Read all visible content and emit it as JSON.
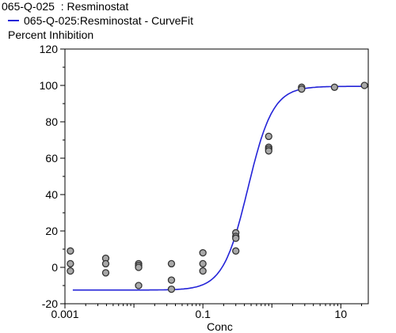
{
  "chart_data": {
    "type": "scatter",
    "title": "065-Q-025  : Resminostat",
    "legend": [
      {
        "label": "065-Q-025:Resminostat - CurveFit",
        "color": "#2323d8"
      }
    ],
    "xlabel": "Conc",
    "ylabel": "Percent Inhibition",
    "xscale": "log",
    "xlim": [
      0.001,
      25
    ],
    "ylim": [
      -20,
      120
    ],
    "xticks": [
      0.001,
      0.1,
      10
    ],
    "xtick_labels": [
      "0.001",
      "0.1",
      "10"
    ],
    "yticks": [
      -20,
      0,
      20,
      40,
      60,
      80,
      100,
      120
    ],
    "grid": false,
    "legend_position": "top-left",
    "series": [
      {
        "kind": "points",
        "x": [
          0.0012,
          0.0012,
          0.0012,
          0.0039,
          0.0039,
          0.0039,
          0.0117,
          0.0117,
          0.0117,
          0.0117,
          0.035,
          0.035,
          0.035,
          0.1,
          0.1,
          0.1,
          0.3,
          0.3,
          0.3,
          0.3,
          0.9,
          0.9,
          0.9,
          0.9,
          2.7,
          2.7,
          8.1,
          22
        ],
        "y": [
          9,
          2,
          -2,
          5,
          2,
          -3,
          2,
          1,
          0,
          -10,
          2,
          -7,
          -12,
          8,
          2,
          -2,
          19,
          17,
          16,
          9,
          72,
          66,
          65,
          64,
          99,
          98,
          99,
          100
        ]
      },
      {
        "kind": "curve",
        "name": "065-Q-025:Resminostat - CurveFit",
        "bottom": -12.5,
        "top": 99.5,
        "ec50": 0.45,
        "hill": 2.4,
        "x_range": [
          0.0013,
          22
        ]
      }
    ]
  }
}
